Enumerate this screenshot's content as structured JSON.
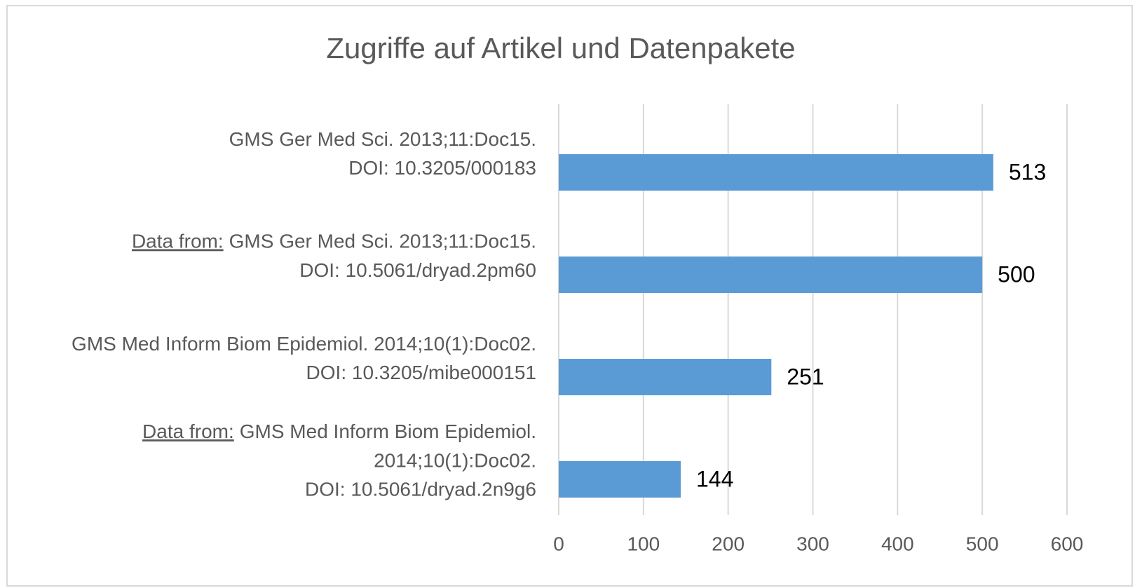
{
  "chart_data": {
    "type": "barh",
    "title": "Zugriffe auf Artikel und Datenpakete",
    "categories": [
      [
        "GMS Ger Med Sci. 2013;11:Doc15.",
        "DOI: 10.3205/000183"
      ],
      [
        "GMS Ger Med Sci. 2013;11:Doc15.",
        "DOI: 10.5061/dryad.2pm60"
      ],
      [
        "GMS Med Inform Biom Epidemiol. 2014;10(1):Doc02.",
        "DOI: 10.3205/mibe000151"
      ],
      [
        "GMS Med Inform Biom Epidemiol.",
        "2014;10(1):Doc02.",
        "DOI: 10.5061/dryad.2n9g6"
      ]
    ],
    "category_prefixes": [
      null,
      "Data from:",
      null,
      "Data from:"
    ],
    "values": [
      513,
      500,
      251,
      144
    ],
    "color": "#5b9bd5",
    "xlim": [
      0,
      600
    ],
    "xticks": [
      0,
      100,
      200,
      300,
      400,
      500,
      600
    ],
    "grid": true
  }
}
